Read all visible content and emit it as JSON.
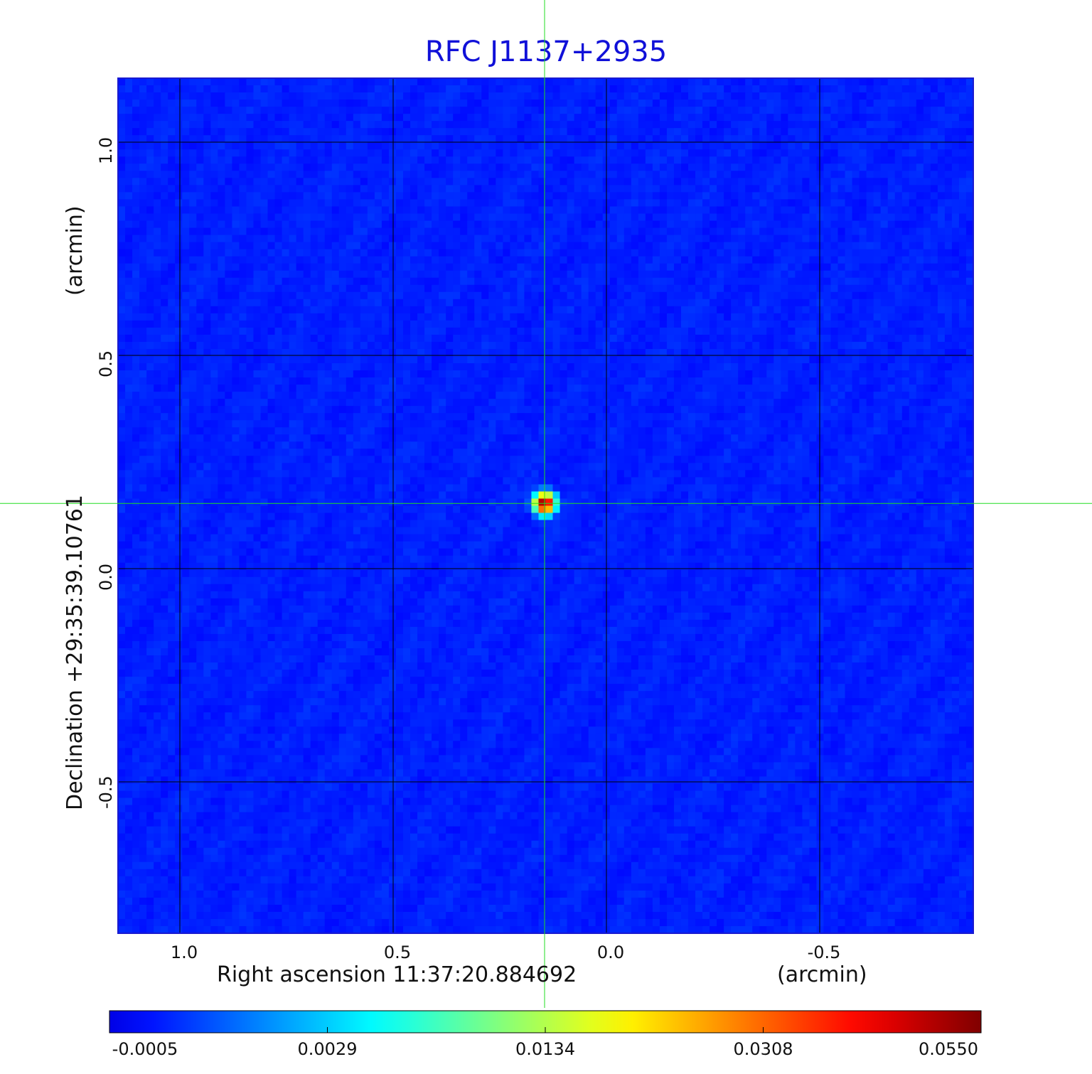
{
  "chart_data": {
    "type": "heatmap",
    "title": "RFC J1137+2935",
    "xlabel": "Right ascension  11:37:20.884692",
    "xunit": "(arcmin)",
    "ylabel": "Declination  +29:35:39.10761",
    "yunit": "(arcmin)",
    "x_ticks": [
      1.0,
      0.5,
      0.0,
      -0.5
    ],
    "x_tick_labels": [
      "1.0",
      "0.5",
      "0.0",
      "-0.5"
    ],
    "y_ticks": [
      1.0,
      0.5,
      0.0,
      -0.5
    ],
    "y_tick_labels": [
      "1.0",
      "0.5",
      "0.0",
      "-0.5"
    ],
    "xlim": [
      1.145,
      -0.86
    ],
    "ylim": [
      -0.855,
      1.15
    ],
    "grid": true,
    "crosshair": {
      "x": 0.145,
      "y": 0.153,
      "color": "#22dd22"
    },
    "source_peak": {
      "x": 0.145,
      "y": 0.153,
      "value": 0.055
    },
    "background_level": 0.0003,
    "colorbar": {
      "location": "bottom",
      "colormap": "jet",
      "tick_values": [
        -0.0005,
        0.0029,
        0.0134,
        0.0308,
        0.055
      ],
      "tick_labels": [
        "-0.0005",
        "0.0029",
        "0.0134",
        "0.0308",
        "0.0550"
      ]
    }
  }
}
